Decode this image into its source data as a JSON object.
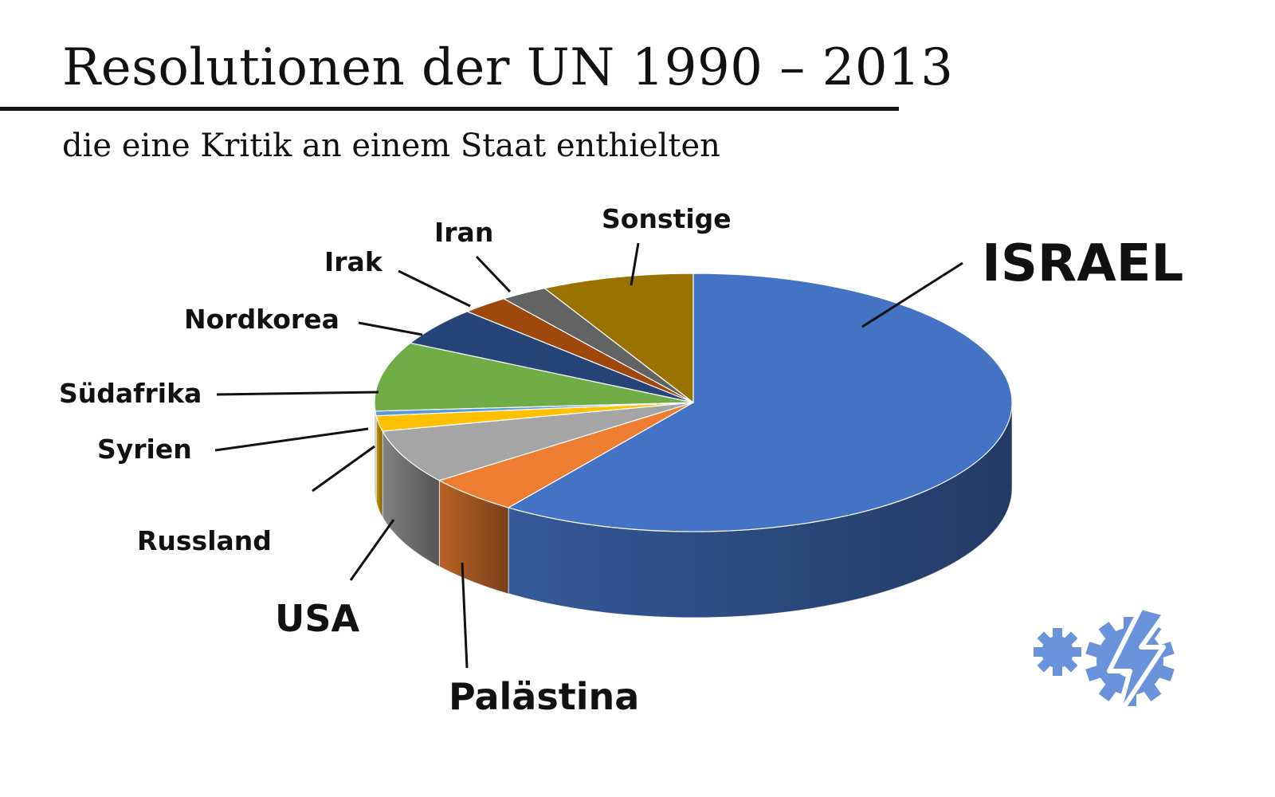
{
  "title": "Resolutionen der UN 1990 – 2013",
  "subtitle": "die eine Kritik an einem Staat enthielten",
  "chart_data": {
    "type": "pie",
    "title": "Resolutionen der UN 1990 – 2013",
    "subtitle": "die eine Kritik an einem Staat enthielten",
    "slices": [
      {
        "label": "ISRAEL",
        "value": 62,
        "color": "#4472C4"
      },
      {
        "label": "Palästina",
        "value": 5,
        "color": "#ED7D31"
      },
      {
        "label": "USA",
        "value": 7,
        "color": "#A5A5A5"
      },
      {
        "label": "Russland",
        "value": 2,
        "color": "#FFC000"
      },
      {
        "label": "Syrien",
        "value": 0.6,
        "color": "#5B9BD5"
      },
      {
        "label": "Südafrika",
        "value": 9,
        "color": "#70AD47"
      },
      {
        "label": "Nordkorea",
        "value": 5,
        "color": "#264478"
      },
      {
        "label": "Irak",
        "value": 2.5,
        "color": "#9E480E"
      },
      {
        "label": "Iran",
        "value": 2.5,
        "color": "#636363"
      },
      {
        "label": "Sonstige",
        "value": 8,
        "color": "#997300"
      }
    ],
    "legend": "none (leader-line labels)"
  },
  "logo": {
    "name": "gear-lightning-logo",
    "color": "#6A93DC"
  }
}
